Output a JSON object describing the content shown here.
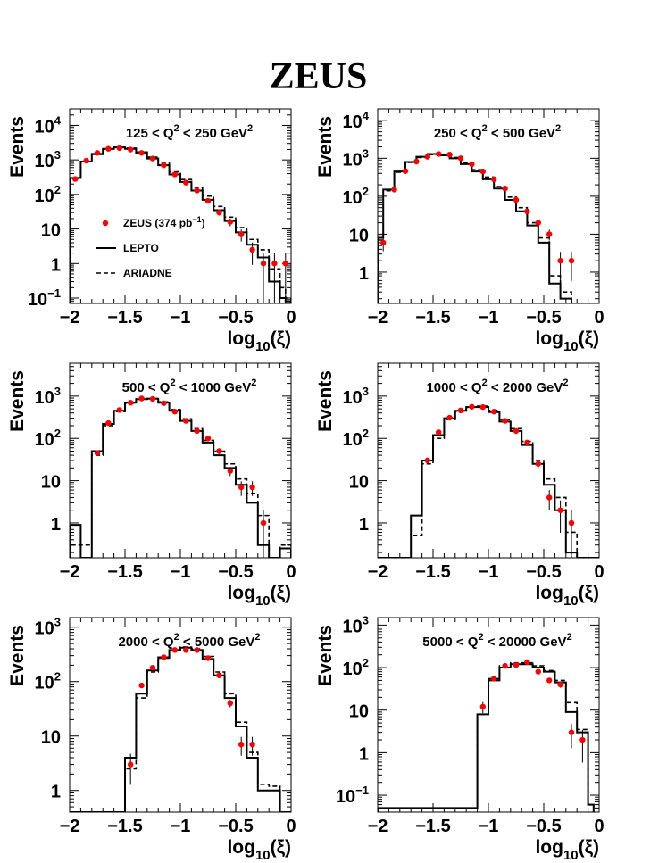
{
  "title": "ZEUS",
  "legend": [
    {
      "label": "ZEUS (374 pb",
      "sup": "−1",
      "close": ")",
      "type": "points",
      "color": "#ff0000"
    },
    {
      "label": "LEPTO",
      "type": "solid"
    },
    {
      "label": "ARIADNE",
      "type": "dashed"
    }
  ],
  "chart_data": [
    {
      "type": "histogram",
      "label_main": "125 < Q",
      "label_sup": "2",
      "label_tail": " < 250 GeV",
      "label_sup2": "2",
      "xlabel": "log",
      "xlabel_sub": "10",
      "xlabel_tail": "(ξ)",
      "ylabel": "Events",
      "log_y": true,
      "xlim": [
        -2,
        0
      ],
      "ylim": [
        0.07,
        30000
      ],
      "x_ticks": [
        "−2",
        "−1.5",
        "−1",
        "−0.5",
        "0"
      ],
      "y_ticks": [
        {
          "value": 0.1,
          "base": "10",
          "exp": "−1"
        },
        {
          "value": 1,
          "base": "1",
          "exp": ""
        },
        {
          "value": 10,
          "base": "10",
          "exp": ""
        },
        {
          "value": 100,
          "base": "10",
          "exp": "2"
        },
        {
          "value": 1000,
          "base": "10",
          "exp": "3"
        },
        {
          "value": 10000,
          "base": "10",
          "exp": "4"
        }
      ],
      "bin_edges": [
        -2.0,
        -1.9,
        -1.8,
        -1.7,
        -1.6,
        -1.5,
        -1.4,
        -1.3,
        -1.2,
        -1.1,
        -1.0,
        -0.9,
        -0.8,
        -0.7,
        -0.6,
        -0.5,
        -0.4,
        -0.3,
        -0.2,
        -0.1,
        -0.05,
        0.0
      ],
      "lepto": [
        300,
        900,
        1500,
        2100,
        2300,
        2100,
        1600,
        1100,
        700,
        380,
        230,
        130,
        70,
        35,
        17,
        8,
        3.5,
        1.5,
        0.3,
        0.1,
        0.08
      ],
      "ariadne": [
        280,
        880,
        1450,
        2050,
        2350,
        2200,
        1700,
        1200,
        800,
        450,
        270,
        160,
        90,
        45,
        22,
        11,
        5,
        2.5,
        0.7,
        0.2,
        0.1
      ],
      "data_x": [
        -1.95,
        -1.85,
        -1.75,
        -1.65,
        -1.55,
        -1.45,
        -1.35,
        -1.25,
        -1.15,
        -1.05,
        -0.95,
        -0.85,
        -0.75,
        -0.65,
        -0.55,
        -0.45,
        -0.35,
        -0.25,
        -0.15,
        -0.05
      ],
      "data_y": [
        280,
        950,
        1600,
        2100,
        2200,
        2000,
        1600,
        1100,
        700,
        380,
        220,
        130,
        65,
        30,
        16,
        7,
        2.5,
        1,
        1,
        1
      ],
      "show_legend": true
    },
    {
      "type": "histogram",
      "label_main": "250 < Q",
      "label_sup": "2",
      "label_tail": " < 500 GeV",
      "label_sup2": "2",
      "xlabel": "log",
      "xlabel_sub": "10",
      "xlabel_tail": "(ξ)",
      "ylabel": "Events",
      "log_y": true,
      "xlim": [
        -2,
        0
      ],
      "ylim": [
        0.15,
        20000
      ],
      "x_ticks": [
        "−2",
        "−1.5",
        "−1",
        "−0.5",
        "0"
      ],
      "y_ticks": [
        {
          "value": 1,
          "base": "1",
          "exp": ""
        },
        {
          "value": 10,
          "base": "10",
          "exp": ""
        },
        {
          "value": 100,
          "base": "10",
          "exp": "2"
        },
        {
          "value": 1000,
          "base": "10",
          "exp": "3"
        },
        {
          "value": 10000,
          "base": "10",
          "exp": "4"
        }
      ],
      "bin_edges": [
        -2.0,
        -1.95,
        -1.85,
        -1.75,
        -1.65,
        -1.55,
        -1.45,
        -1.35,
        -1.25,
        -1.15,
        -1.05,
        -0.95,
        -0.85,
        -0.75,
        -0.65,
        -0.55,
        -0.45,
        -0.35,
        -0.25,
        -0.15
      ],
      "lepto": [
        8,
        150,
        450,
        800,
        1100,
        1300,
        1200,
        1000,
        700,
        450,
        280,
        160,
        80,
        40,
        17,
        6,
        0.5,
        0.2,
        0.1
      ],
      "ariadne": [
        7,
        140,
        430,
        780,
        1050,
        1250,
        1250,
        1050,
        750,
        500,
        320,
        180,
        95,
        50,
        20,
        8,
        0.8,
        0.3,
        0.1
      ],
      "data_x": [
        -1.95,
        -1.85,
        -1.75,
        -1.65,
        -1.55,
        -1.45,
        -1.35,
        -1.25,
        -1.15,
        -1.05,
        -0.95,
        -0.85,
        -0.75,
        -0.65,
        -0.55,
        -0.45,
        -0.35,
        -0.25
      ],
      "data_y": [
        6,
        150,
        460,
        820,
        1100,
        1300,
        1250,
        1000,
        700,
        450,
        280,
        160,
        80,
        40,
        20,
        10,
        2,
        2
      ],
      "show_legend": false
    },
    {
      "type": "histogram",
      "label_main": "500 < Q",
      "label_sup": "2",
      "label_tail": " < 1000 GeV",
      "label_sup2": "2",
      "xlabel": "log",
      "xlabel_sub": "10",
      "xlabel_tail": "(ξ)",
      "ylabel": "Events",
      "log_y": true,
      "xlim": [
        -2,
        0
      ],
      "ylim": [
        0.15,
        6000
      ],
      "x_ticks": [
        "−2",
        "−1.5",
        "−1",
        "−0.5",
        "0"
      ],
      "y_ticks": [
        {
          "value": 1,
          "base": "1",
          "exp": ""
        },
        {
          "value": 10,
          "base": "10",
          "exp": ""
        },
        {
          "value": 100,
          "base": "10",
          "exp": "2"
        },
        {
          "value": 1000,
          "base": "10",
          "exp": "3"
        }
      ],
      "bin_edges": [
        -2.0,
        -1.9,
        -1.8,
        -1.7,
        -1.6,
        -1.5,
        -1.4,
        -1.3,
        -1.2,
        -1.1,
        -1.0,
        -0.9,
        -0.8,
        -0.7,
        -0.6,
        -0.5,
        -0.4,
        -0.3,
        -0.2,
        -0.1,
        0.0
      ],
      "lepto": [
        0.9,
        0.15,
        50,
        220,
        450,
        700,
        850,
        870,
        700,
        450,
        260,
        150,
        80,
        40,
        20,
        8,
        3,
        0.3,
        0.15,
        0.25
      ],
      "ariadne": [
        0.3,
        0.3,
        40,
        200,
        430,
        680,
        850,
        880,
        730,
        480,
        290,
        170,
        90,
        50,
        25,
        11,
        5,
        1.5,
        0.15,
        0.3
      ],
      "data_x": [
        -1.75,
        -1.65,
        -1.55,
        -1.45,
        -1.35,
        -1.25,
        -1.15,
        -1.05,
        -0.95,
        -0.85,
        -0.75,
        -0.65,
        -0.55,
        -0.45,
        -0.35,
        -0.25
      ],
      "data_y": [
        45,
        230,
        470,
        700,
        880,
        860,
        680,
        430,
        260,
        150,
        100,
        50,
        17,
        7,
        7,
        1
      ],
      "show_legend": false
    },
    {
      "type": "histogram",
      "label_main": "1000 < Q",
      "label_sup": "2",
      "label_tail": " < 2000 GeV",
      "label_sup2": "2",
      "xlabel": "log",
      "xlabel_sub": "10",
      "xlabel_tail": "(ξ)",
      "ylabel": "Events",
      "log_y": true,
      "xlim": [
        -2,
        0
      ],
      "ylim": [
        0.15,
        6000
      ],
      "x_ticks": [
        "−2",
        "−1.5",
        "−1",
        "−0.5",
        "0"
      ],
      "y_ticks": [
        {
          "value": 1,
          "base": "1",
          "exp": ""
        },
        {
          "value": 10,
          "base": "10",
          "exp": ""
        },
        {
          "value": 100,
          "base": "10",
          "exp": "2"
        },
        {
          "value": 1000,
          "base": "10",
          "exp": "3"
        }
      ],
      "bin_edges": [
        -2.0,
        -1.7,
        -1.6,
        -1.5,
        -1.4,
        -1.3,
        -1.2,
        -1.1,
        -1.0,
        -0.9,
        -0.8,
        -0.7,
        -0.6,
        -0.5,
        -0.4,
        -0.3,
        -0.2,
        -0.1,
        0.0
      ],
      "lepto": [
        0.15,
        1.5,
        30,
        120,
        300,
        450,
        550,
        550,
        420,
        250,
        150,
        70,
        25,
        8,
        2,
        0.2,
        0.15,
        0.15
      ],
      "ariadne": [
        0.15,
        0.5,
        25,
        100,
        280,
        440,
        560,
        580,
        460,
        280,
        170,
        85,
        30,
        11,
        4,
        0.6,
        0.15,
        0.15
      ],
      "data_x": [
        -1.55,
        -1.45,
        -1.35,
        -1.25,
        -1.15,
        -1.05,
        -0.95,
        -0.85,
        -0.75,
        -0.65,
        -0.55,
        -0.45,
        -0.35,
        -0.25
      ],
      "data_y": [
        30,
        140,
        310,
        460,
        560,
        550,
        430,
        260,
        150,
        80,
        25,
        4,
        2,
        1
      ],
      "show_legend": false
    },
    {
      "type": "histogram",
      "label_main": "2000 < Q",
      "label_sup": "2",
      "label_tail": " < 5000 GeV",
      "label_sup2": "2",
      "xlabel": "log",
      "xlabel_sub": "10",
      "xlabel_tail": "(ξ)",
      "ylabel": "Events",
      "log_y": true,
      "xlim": [
        -2,
        0
      ],
      "ylim": [
        0.4,
        1500
      ],
      "x_ticks": [
        "−2",
        "−1.5",
        "−1",
        "−0.5",
        "0"
      ],
      "y_ticks": [
        {
          "value": 1,
          "base": "1",
          "exp": ""
        },
        {
          "value": 10,
          "base": "10",
          "exp": ""
        },
        {
          "value": 100,
          "base": "10",
          "exp": "2"
        },
        {
          "value": 1000,
          "base": "10",
          "exp": "3"
        }
      ],
      "bin_edges": [
        -2.0,
        -1.5,
        -1.4,
        -1.3,
        -1.2,
        -1.1,
        -1.0,
        -0.9,
        -0.8,
        -0.7,
        -0.6,
        -0.5,
        -0.4,
        -0.3,
        -0.2,
        -0.1,
        0.0
      ],
      "lepto": [
        0.4,
        4,
        60,
        160,
        280,
        380,
        420,
        380,
        260,
        130,
        50,
        15,
        4,
        1,
        1,
        0.4
      ],
      "ariadne": [
        0.4,
        2.5,
        50,
        150,
        270,
        380,
        430,
        400,
        290,
        150,
        60,
        18,
        5,
        1.3,
        1.2,
        0.4
      ],
      "data_x": [
        -1.45,
        -1.35,
        -1.25,
        -1.15,
        -1.05,
        -0.95,
        -0.85,
        -0.75,
        -0.65,
        -0.55,
        -0.45,
        -0.35
      ],
      "data_y": [
        3,
        85,
        180,
        280,
        380,
        380,
        380,
        270,
        130,
        40,
        7,
        7
      ],
      "show_legend": false
    },
    {
      "type": "histogram",
      "label_main": "5000 < Q",
      "label_sup": "2",
      "label_tail": " < 20000 GeV",
      "label_sup2": "2",
      "xlabel": "log",
      "xlabel_sub": "10",
      "xlabel_tail": "(ξ)",
      "ylabel": "Events",
      "log_y": true,
      "xlim": [
        -2,
        0
      ],
      "ylim": [
        0.04,
        1500
      ],
      "x_ticks": [
        "−2",
        "−1.5",
        "−1",
        "−0.5",
        "0"
      ],
      "y_ticks": [
        {
          "value": 0.1,
          "base": "10",
          "exp": "−1"
        },
        {
          "value": 1,
          "base": "1",
          "exp": ""
        },
        {
          "value": 10,
          "base": "10",
          "exp": ""
        },
        {
          "value": 100,
          "base": "10",
          "exp": "2"
        },
        {
          "value": 1000,
          "base": "10",
          "exp": "3"
        }
      ],
      "bin_edges": [
        -2.0,
        -1.1,
        -1.0,
        -0.9,
        -0.8,
        -0.7,
        -0.6,
        -0.5,
        -0.4,
        -0.3,
        -0.2,
        -0.1,
        -0.05
      ],
      "lepto": [
        0.05,
        8,
        50,
        100,
        120,
        120,
        100,
        80,
        45,
        9,
        3,
        0.06
      ],
      "ariadne": [
        0.05,
        8,
        55,
        110,
        130,
        130,
        110,
        85,
        50,
        15,
        3.5,
        0.06
      ],
      "data_x": [
        -1.05,
        -0.95,
        -0.85,
        -0.75,
        -0.65,
        -0.55,
        -0.45,
        -0.35,
        -0.25,
        -0.15
      ],
      "data_y": [
        12,
        55,
        110,
        115,
        135,
        80,
        50,
        40,
        3,
        2
      ],
      "show_legend": false
    }
  ]
}
